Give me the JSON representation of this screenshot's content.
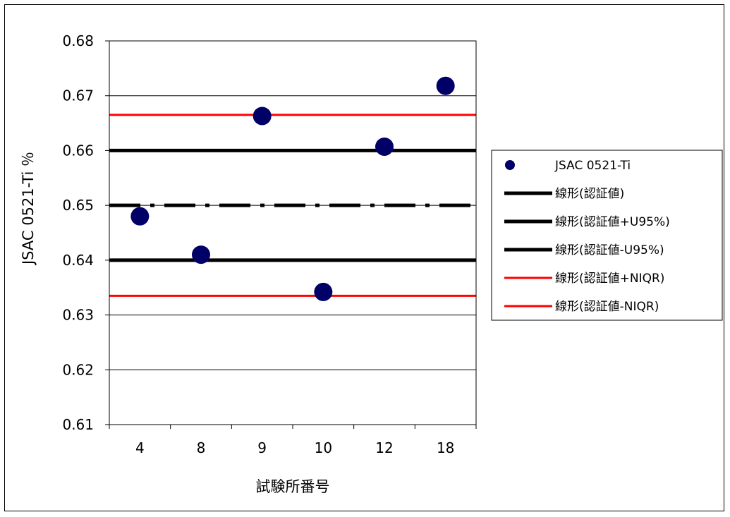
{
  "chart_data": {
    "type": "scatter",
    "title": "",
    "xlabel": "試験所番号",
    "ylabel": "JSAC 0521-Ti ％",
    "categories": [
      "4",
      "8",
      "9",
      "10",
      "12",
      "18"
    ],
    "ylim": [
      0.61,
      0.68
    ],
    "yticks": [
      "0.61",
      "0.62",
      "0.63",
      "0.64",
      "0.65",
      "0.66",
      "0.67",
      "0.68"
    ],
    "grid": true,
    "legend_position": "right",
    "series": [
      {
        "name": "JSAC 0521-Ti",
        "kind": "points",
        "color": "#000066",
        "values": [
          0.648,
          0.641,
          0.6663,
          0.6342,
          0.6607,
          0.6718
        ]
      },
      {
        "name": "線形(認証値)",
        "kind": "line",
        "color": "#000000",
        "style": "dash-dot",
        "value": 0.65
      },
      {
        "name": "線形(認証値+U95%)",
        "kind": "line",
        "color": "#000000",
        "style": "solid",
        "value": 0.66
      },
      {
        "name": "線形(認証値-U95%)",
        "kind": "line",
        "color": "#000000",
        "style": "solid",
        "value": 0.64
      },
      {
        "name": "線形(認証値+NIQR)",
        "kind": "line",
        "color": "#ff0000",
        "style": "solid",
        "value": 0.6665
      },
      {
        "name": "線形(認証値-NIQR)",
        "kind": "line",
        "color": "#ff0000",
        "style": "solid",
        "value": 0.6335
      }
    ]
  }
}
